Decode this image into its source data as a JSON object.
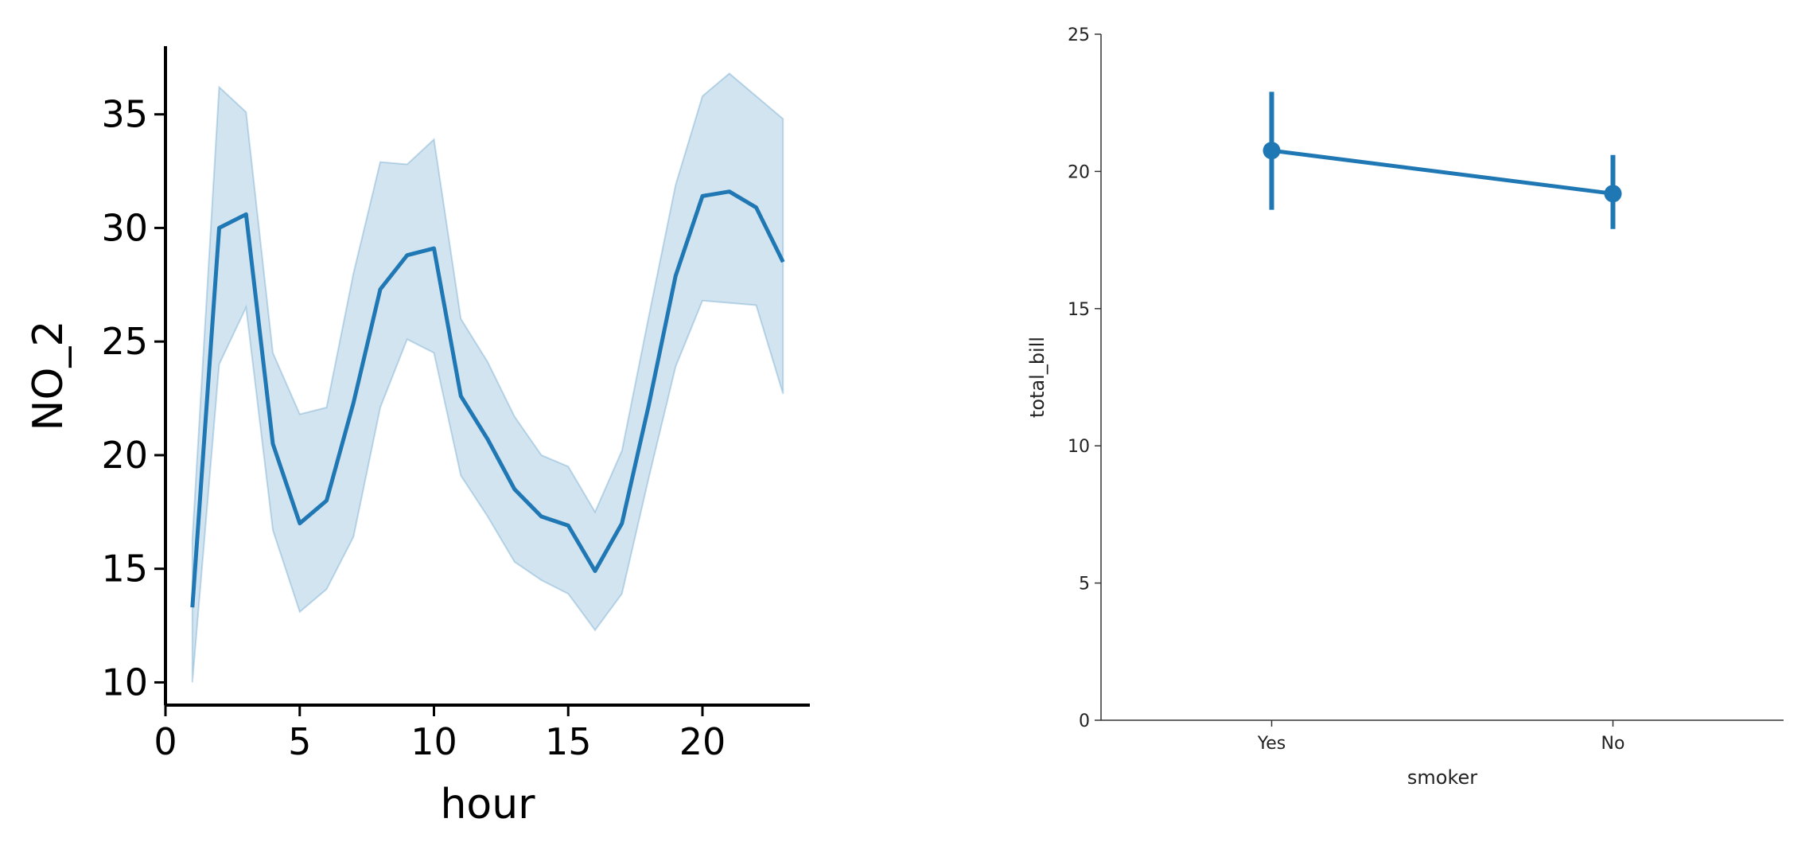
{
  "chart_data": [
    {
      "type": "line",
      "xlabel": "hour",
      "ylabel": "NO_2",
      "xlim": [
        0,
        24
      ],
      "ylim": [
        9,
        38
      ],
      "xticks": [
        0,
        5,
        10,
        15,
        20
      ],
      "yticks": [
        10,
        15,
        20,
        25,
        30,
        35
      ],
      "grid": false,
      "color": "#1f77b4",
      "band_color": "#1f77b4",
      "x": [
        1,
        2,
        3,
        4,
        5,
        6,
        7,
        8,
        9,
        10,
        11,
        12,
        13,
        14,
        15,
        16,
        17,
        18,
        19,
        20,
        21,
        22,
        23
      ],
      "y": [
        13.3,
        30.0,
        30.6,
        20.5,
        17.0,
        18.0,
        22.3,
        27.3,
        28.8,
        29.1,
        22.6,
        20.7,
        18.5,
        17.3,
        16.9,
        14.9,
        17.0,
        22.2,
        27.9,
        31.4,
        31.6,
        30.9,
        28.5
      ],
      "ci_low": [
        10.0,
        24.0,
        26.5,
        16.7,
        13.1,
        14.1,
        16.4,
        22.1,
        25.1,
        24.5,
        19.1,
        17.3,
        15.3,
        14.5,
        13.9,
        12.3,
        13.9,
        19.0,
        23.9,
        26.8,
        26.7,
        26.6,
        22.7
      ],
      "ci_high": [
        16.3,
        36.2,
        35.1,
        24.5,
        21.8,
        22.1,
        28.0,
        32.9,
        32.8,
        33.9,
        26.0,
        24.1,
        21.7,
        20.0,
        19.5,
        17.5,
        20.2,
        26.1,
        31.9,
        35.8,
        36.8,
        35.8,
        34.8
      ]
    },
    {
      "type": "pointplot",
      "xlabel": "smoker",
      "ylabel": "total_bill",
      "categories": [
        "Yes",
        "No"
      ],
      "values": [
        20.76,
        19.19
      ],
      "ci_low": [
        18.6,
        17.9
      ],
      "ci_high": [
        22.9,
        20.6
      ],
      "ylim": [
        0,
        25
      ],
      "yticks": [
        0,
        5,
        10,
        15,
        20,
        25
      ],
      "grid": false,
      "color": "#1f77b4"
    }
  ]
}
